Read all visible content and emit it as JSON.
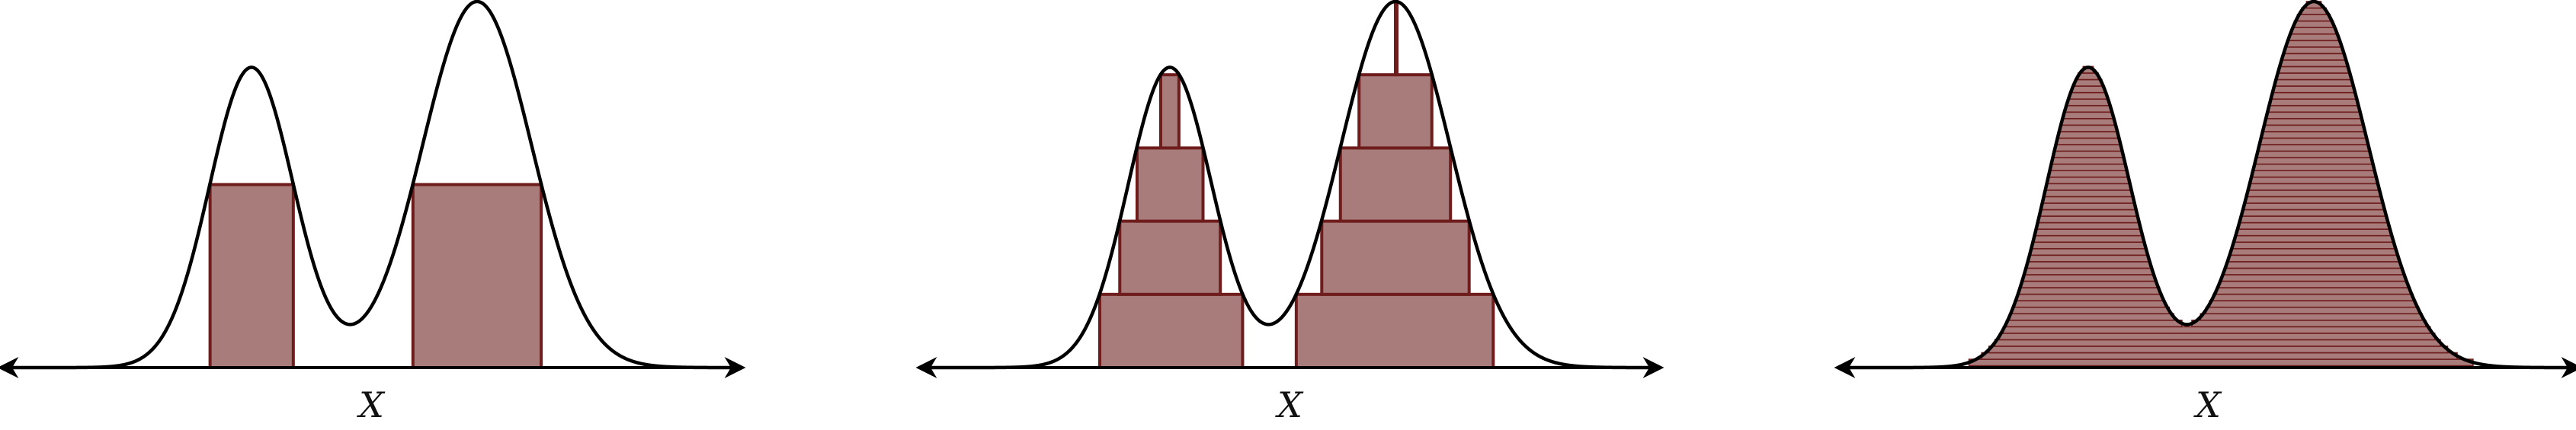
{
  "colors": {
    "fill": "#a87c7a",
    "edge": "#6e1c1c",
    "curve": "#000000",
    "axis": "#000000",
    "background": "#ffffff"
  },
  "curve": {
    "peaks": [
      {
        "center": -0.33,
        "height": 0.82,
        "width": 0.115
      },
      {
        "center": 0.29,
        "height": 1.0,
        "width": 0.15
      }
    ],
    "x_range": [
      -1.0,
      1.0
    ]
  },
  "panels": [
    {
      "axis_label": "X",
      "mode": "threshold",
      "levels": [
        0.5
      ]
    },
    {
      "axis_label": "X",
      "mode": "levels",
      "levels": [
        0.0,
        0.2,
        0.4,
        0.6,
        0.8
      ]
    },
    {
      "axis_label": "X",
      "mode": "fine",
      "levels_count": 56
    }
  ]
}
